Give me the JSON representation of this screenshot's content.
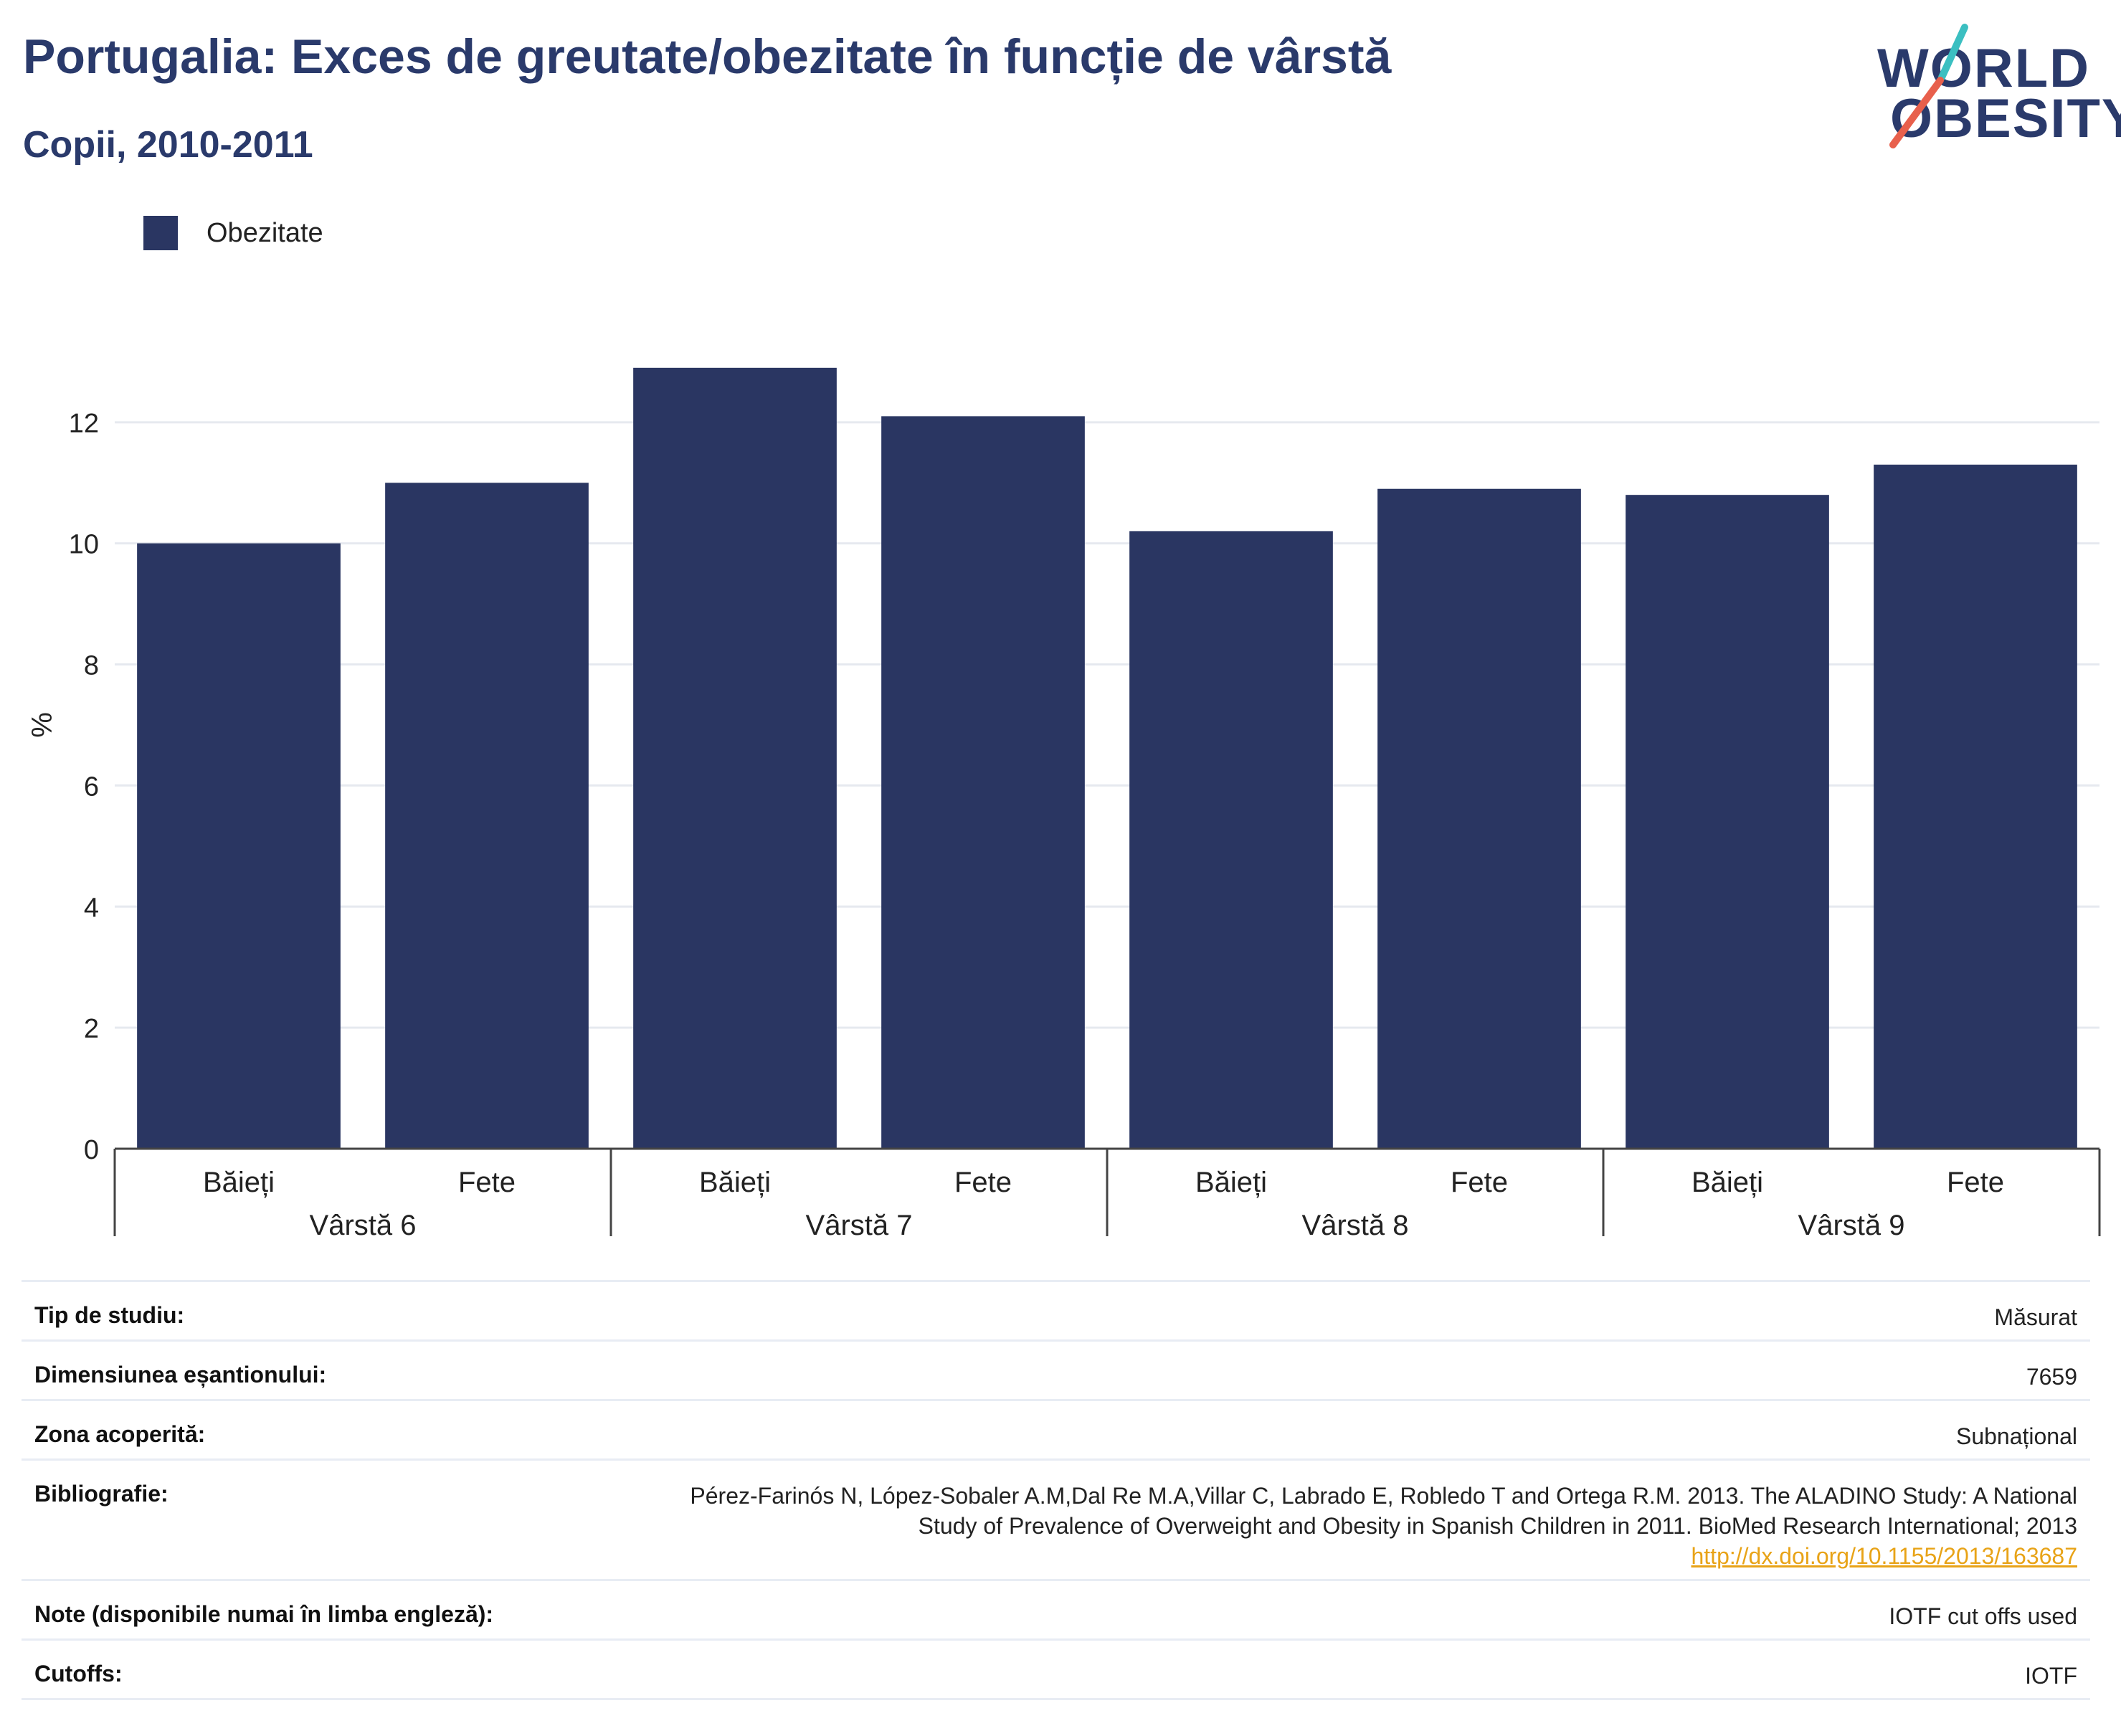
{
  "title": "Portugalia: Exces de greutate/obezitate în funcție de vârstă",
  "subtitle": "Copii, 2010-2011",
  "logo": {
    "line1": "WORLD",
    "line2": "OBESITY",
    "slash_colors": [
      "#3bbfc1",
      "#e8604c"
    ]
  },
  "legend": [
    {
      "label": "Obezitate",
      "color": "#2a3662"
    }
  ],
  "chart_data": {
    "type": "bar",
    "ylabel": "%",
    "ylim": [
      0,
      14
    ],
    "yticks": [
      0,
      2,
      4,
      6,
      8,
      10,
      12
    ],
    "grid": true,
    "legend_position": "top-left",
    "groups": [
      {
        "label": "Vârstă 6",
        "categories": [
          "Băieți",
          "Fete"
        ]
      },
      {
        "label": "Vârstă 7",
        "categories": [
          "Băieți",
          "Fete"
        ]
      },
      {
        "label": "Vârstă 8",
        "categories": [
          "Băieți",
          "Fete"
        ]
      },
      {
        "label": "Vârstă 9",
        "categories": [
          "Băieți",
          "Fete"
        ]
      }
    ],
    "series": [
      {
        "name": "Obezitate",
        "color": "#2a3662",
        "values": [
          10.0,
          11.0,
          12.9,
          12.1,
          10.2,
          10.9,
          10.8,
          11.3
        ]
      }
    ]
  },
  "table": [
    {
      "label": "Tip de studiu:",
      "value": "Măsurat"
    },
    {
      "label": "Dimensiunea eșantionului:",
      "value": "7659"
    },
    {
      "label": "Zona acoperită:",
      "value": "Subnațional"
    },
    {
      "label": "Bibliografie:",
      "value_lines": [
        "Pérez-Farinós N, López-Sobaler A.M,Dal Re M.A,Villar C, Labrado E, Robledo T and Ortega R.M. 2013. The ALADINO Study: A National",
        "Study of Prevalence of Overweight and Obesity in Spanish Children in 2011. BioMed Research International; 2013"
      ],
      "link": "http://dx.doi.org/10.1155/2013/163687"
    },
    {
      "label": "Note (disponibile numai în limba engleză):",
      "value": "IOTF cut offs used"
    },
    {
      "label": "Cutoffs:",
      "value": "IOTF"
    }
  ]
}
